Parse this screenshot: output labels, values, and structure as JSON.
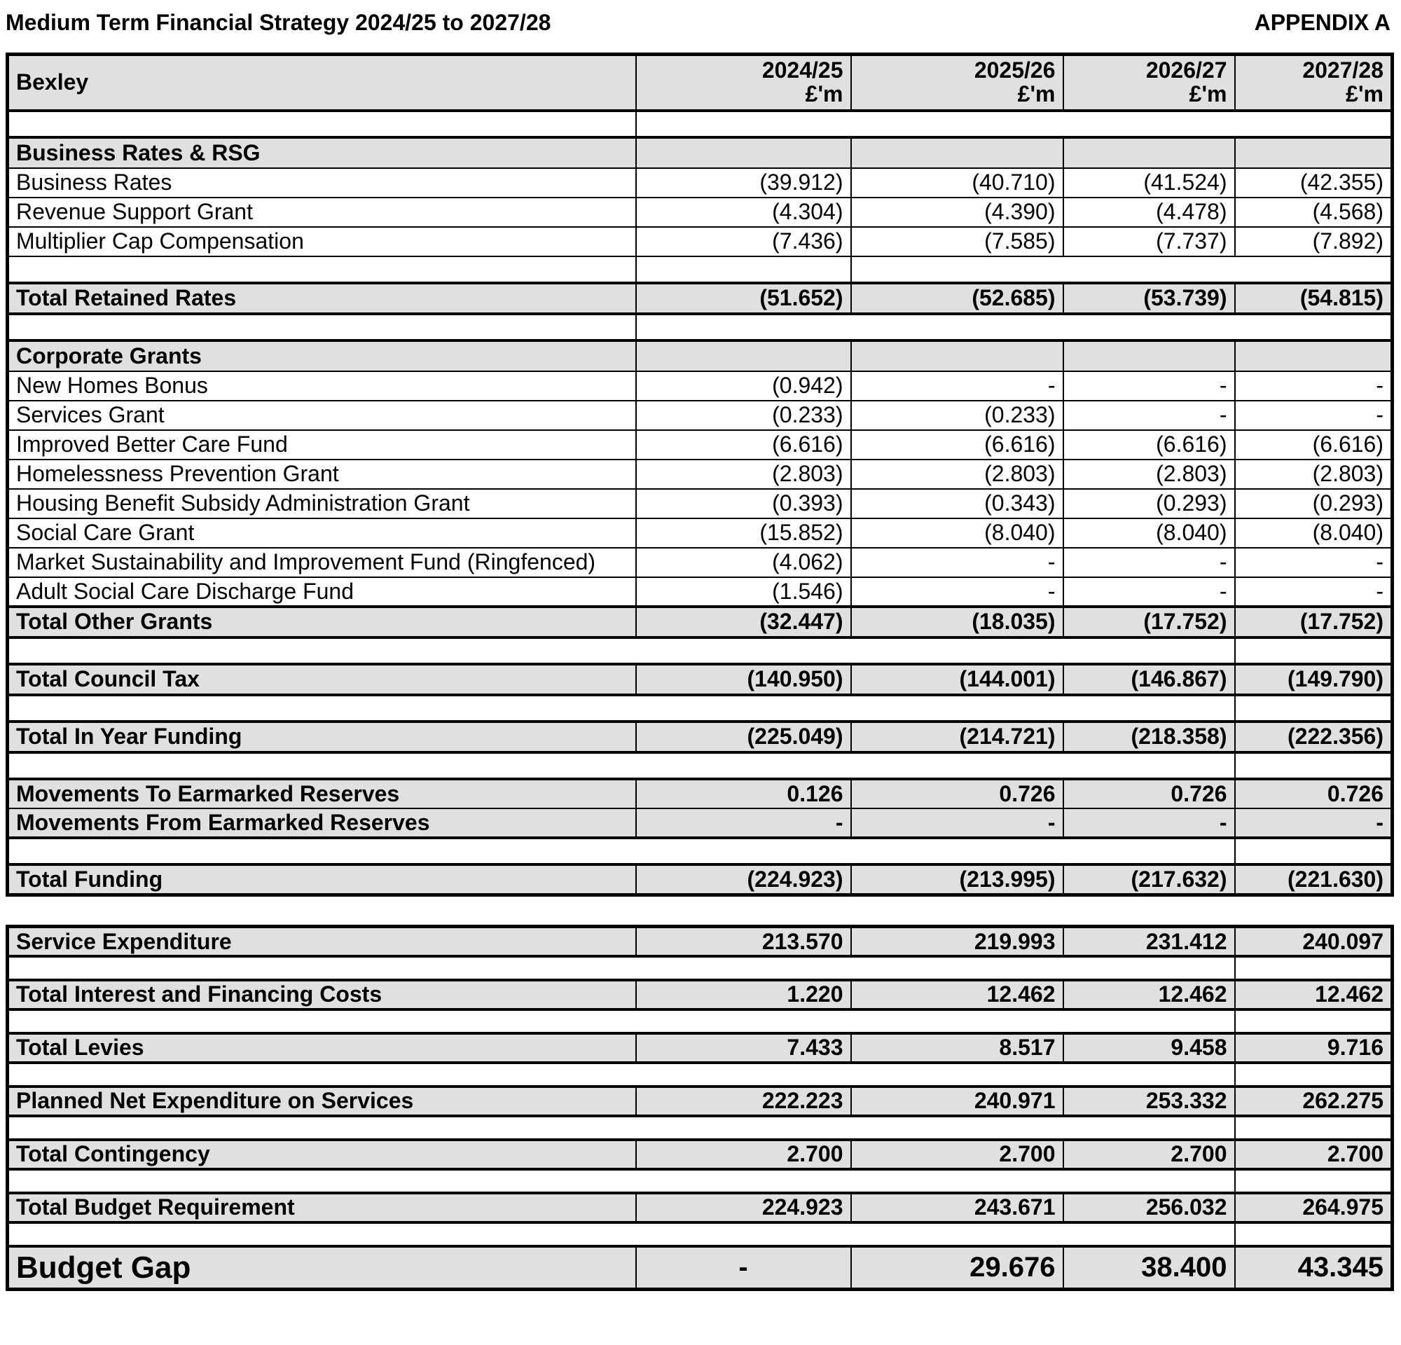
{
  "page": {
    "title": "Medium Term Financial Strategy 2024/25 to 2027/28",
    "appendix": "APPENDIX A"
  },
  "colors": {
    "shade": "#e0e0e0",
    "border": "#000000",
    "text": "#000000",
    "background": "#ffffff"
  },
  "table": {
    "entity": "Bexley",
    "columns": [
      {
        "year": "2024/25",
        "unit": "£'m"
      },
      {
        "year": "2025/26",
        "unit": "£'m"
      },
      {
        "year": "2026/27",
        "unit": "£'m"
      },
      {
        "year": "2027/28",
        "unit": "£'m"
      }
    ]
  },
  "funding_rows": [
    {
      "type": "spacer-a"
    },
    {
      "type": "section",
      "label": "Business Rates & RSG",
      "values": [
        "",
        "",
        "",
        ""
      ]
    },
    {
      "type": "data",
      "label": "Business Rates",
      "values": [
        "(39.912)",
        "(40.710)",
        "(41.524)",
        "(42.355)"
      ]
    },
    {
      "type": "data",
      "label": "Revenue Support Grant",
      "values": [
        "(4.304)",
        "(4.390)",
        "(4.478)",
        "(4.568)"
      ]
    },
    {
      "type": "data",
      "label": "Multiplier Cap Compensation",
      "values": [
        "(7.436)",
        "(7.585)",
        "(7.737)",
        "(7.892)"
      ]
    },
    {
      "type": "spacer-b"
    },
    {
      "type": "total",
      "label": "Total Retained Rates",
      "values": [
        "(51.652)",
        "(52.685)",
        "(53.739)",
        "(54.815)"
      ]
    },
    {
      "type": "spacer-a"
    },
    {
      "type": "section",
      "label": "Corporate Grants",
      "values": [
        "",
        "",
        "",
        ""
      ]
    },
    {
      "type": "data",
      "label": "New Homes Bonus",
      "values": [
        "(0.942)",
        "-",
        "-",
        "-"
      ]
    },
    {
      "type": "data",
      "label": "Services Grant",
      "values": [
        "(0.233)",
        "(0.233)",
        "-",
        "-"
      ]
    },
    {
      "type": "data",
      "label": "Improved Better Care Fund",
      "values": [
        "(6.616)",
        "(6.616)",
        "(6.616)",
        "(6.616)"
      ]
    },
    {
      "type": "data",
      "label": "Homelessness Prevention Grant",
      "values": [
        "(2.803)",
        "(2.803)",
        "(2.803)",
        "(2.803)"
      ]
    },
    {
      "type": "data",
      "label": "Housing Benefit Subsidy Administration Grant",
      "values": [
        "(0.393)",
        "(0.343)",
        "(0.293)",
        "(0.293)"
      ]
    },
    {
      "type": "data",
      "label": "Social Care Grant",
      "values": [
        "(15.852)",
        "(8.040)",
        "(8.040)",
        "(8.040)"
      ]
    },
    {
      "type": "data",
      "label": "Market Sustainability and Improvement Fund (Ringfenced)",
      "values": [
        "(4.062)",
        "-",
        "-",
        "-"
      ]
    },
    {
      "type": "data",
      "label": "Adult Social Care Discharge Fund",
      "values": [
        "(1.546)",
        "-",
        "-",
        "-"
      ]
    },
    {
      "type": "total",
      "label": "Total Other Grants",
      "values": [
        "(32.447)",
        "(18.035)",
        "(17.752)",
        "(17.752)"
      ]
    },
    {
      "type": "spacer-c"
    },
    {
      "type": "total",
      "label": "Total Council Tax",
      "values": [
        "(140.950)",
        "(144.001)",
        "(146.867)",
        "(149.790)"
      ]
    },
    {
      "type": "spacer-c"
    },
    {
      "type": "total",
      "label": "Total In Year Funding",
      "values": [
        "(225.049)",
        "(214.721)",
        "(218.358)",
        "(222.356)"
      ]
    },
    {
      "type": "spacer-c"
    },
    {
      "type": "total-first",
      "label": "Movements To Earmarked Reserves",
      "values": [
        "0.126",
        "0.726",
        "0.726",
        "0.726"
      ]
    },
    {
      "type": "total-last",
      "label": "Movements From Earmarked Reserves",
      "values": [
        "-",
        "-",
        "-",
        "-"
      ]
    },
    {
      "type": "spacer-c"
    },
    {
      "type": "total",
      "label": "Total Funding",
      "values": [
        "(224.923)",
        "(213.995)",
        "(217.632)",
        "(221.630)"
      ]
    }
  ],
  "expenditure_rows": [
    {
      "type": "total",
      "label": "Service Expenditure",
      "values": [
        "213.570",
        "219.993",
        "231.412",
        "240.097"
      ]
    },
    {
      "type": "spacer-c"
    },
    {
      "type": "total",
      "label": "Total Interest and Financing Costs",
      "values": [
        "1.220",
        "12.462",
        "12.462",
        "12.462"
      ]
    },
    {
      "type": "spacer-c"
    },
    {
      "type": "total",
      "label": "Total Levies",
      "values": [
        "7.433",
        "8.517",
        "9.458",
        "9.716"
      ]
    },
    {
      "type": "spacer-c"
    },
    {
      "type": "total",
      "label": "Planned Net Expenditure on Services",
      "values": [
        "222.223",
        "240.971",
        "253.332",
        "262.275"
      ]
    },
    {
      "type": "spacer-c"
    },
    {
      "type": "total",
      "label": "Total Contingency",
      "values": [
        "2.700",
        "2.700",
        "2.700",
        "2.700"
      ]
    },
    {
      "type": "spacer-c"
    },
    {
      "type": "total",
      "label": "Total Budget Requirement",
      "values": [
        "224.923",
        "243.671",
        "256.032",
        "264.975"
      ]
    },
    {
      "type": "spacer-c"
    },
    {
      "type": "gap",
      "label": "Budget Gap",
      "values": [
        "-",
        "29.676",
        "38.400",
        "43.345"
      ]
    }
  ]
}
